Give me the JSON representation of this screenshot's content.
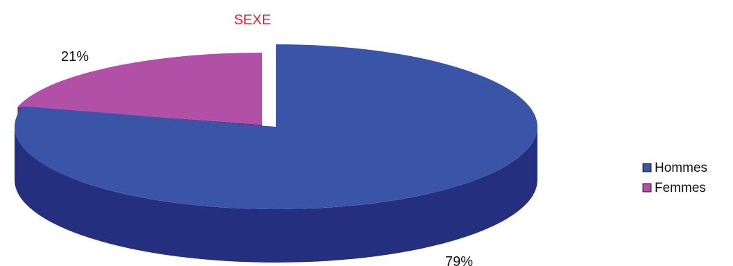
{
  "chart_data": {
    "type": "pie",
    "title": "SEXE",
    "categories": [
      "Hommes",
      "Femmes"
    ],
    "values": [
      79,
      21
    ],
    "value_labels": [
      "79%",
      "21%"
    ],
    "colors": [
      "#3a55a8",
      "#b24fa6"
    ],
    "side_colors": [
      "#242f7f",
      "#7a2b74"
    ],
    "style": "3d-exploded",
    "legend": "right",
    "legend_labels": [
      "Hommes",
      "Femmes"
    ]
  }
}
